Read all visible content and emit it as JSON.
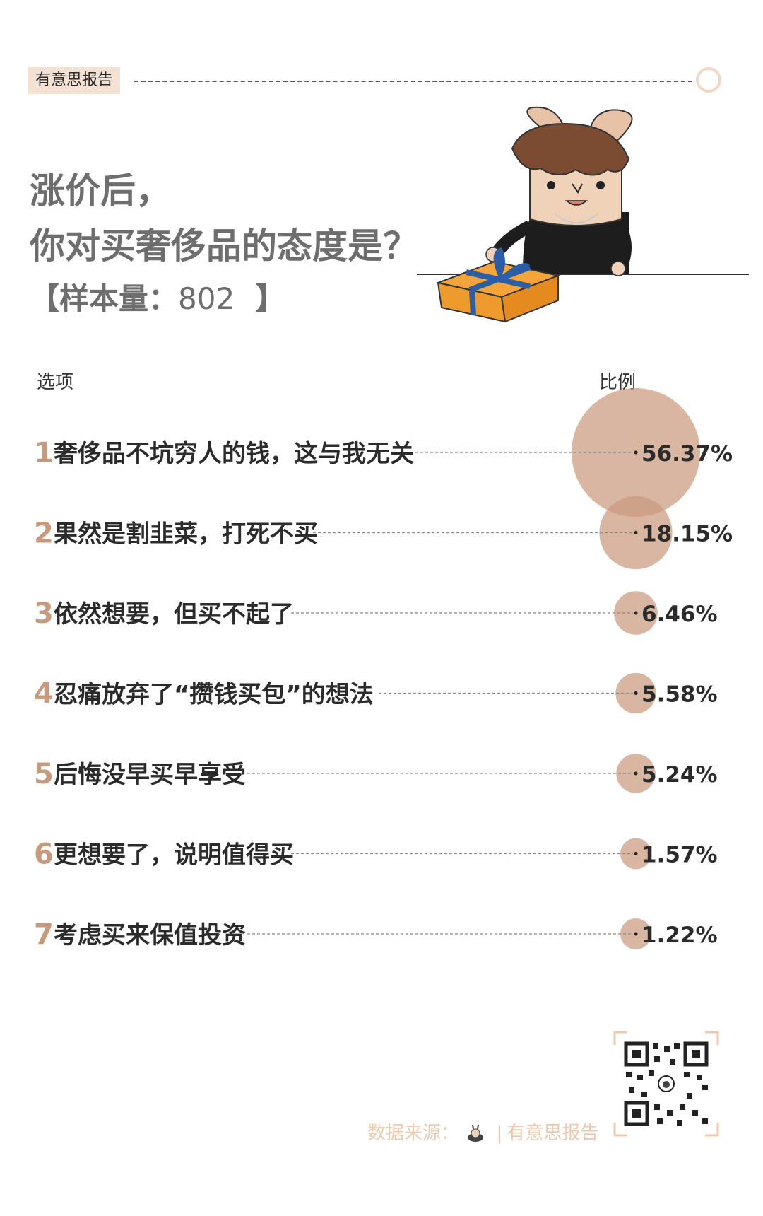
{
  "header": {
    "brand": "有意思报告",
    "title_line1": "涨价后，",
    "title_line2": "你对买奢侈品的态度是？",
    "sample_prefix": "【样本量：",
    "sample_value": "802",
    "sample_suffix": "】"
  },
  "columns": {
    "option": "选项",
    "ratio": "比例"
  },
  "colors": {
    "bubble": "#c99a7e",
    "number": "#c79a7d",
    "title": "#6e6e6e"
  },
  "chart_data": {
    "type": "bubble",
    "categories": [
      "奢侈品不坑穷人的钱，这与我无关",
      "果然是割韭菜，打死不买",
      "依然想要，但买不起了",
      "忍痛放弃了“攒钱买包”的想法",
      "后悔没早买早享受",
      "更想要了，说明值得买",
      "考虑买来保值投资"
    ],
    "values": [
      56.37,
      18.15,
      6.46,
      5.58,
      5.24,
      1.57,
      1.22
    ],
    "labels": [
      "56.37%",
      "18.15%",
      "6.46%",
      "5.58%",
      "5.24%",
      "1.57%",
      "1.22%"
    ],
    "numbers": [
      "1",
      "2",
      "3",
      "4",
      "5",
      "6",
      "7"
    ]
  },
  "footer": {
    "source_label": "数据来源：",
    "source_name": "有意思报告",
    "qr_icon": "qr-code-icon",
    "mascot_icon": "bunny-mascot-icon"
  }
}
